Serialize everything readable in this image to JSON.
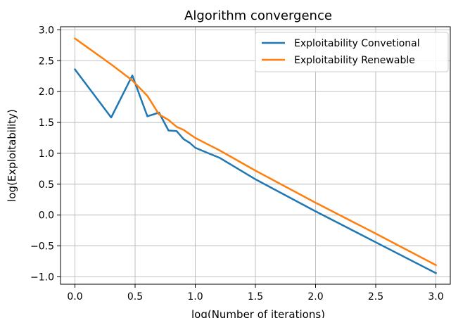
{
  "chart_data": {
    "type": "line",
    "title": "Algorithm convergence",
    "xlabel": "log(Number of iterations)",
    "ylabel": "log(Exploitability)",
    "xlim": [
      -0.12,
      3.12
    ],
    "ylim": [
      -1.12,
      3.05
    ],
    "xticks": [
      0.0,
      0.5,
      1.0,
      1.5,
      2.0,
      2.5,
      3.0
    ],
    "xtick_labels": [
      "0.0",
      "0.5",
      "1.0",
      "1.5",
      "2.0",
      "2.5",
      "3.0"
    ],
    "yticks": [
      -1.0,
      -0.5,
      0.0,
      0.5,
      1.0,
      1.5,
      2.0,
      2.5,
      3.0
    ],
    "ytick_labels": [
      "−1.0",
      "−0.5",
      "0.0",
      "0.5",
      "1.0",
      "1.5",
      "2.0",
      "2.5",
      "3.0"
    ],
    "grid": true,
    "legend_position": "top-right",
    "series": [
      {
        "name": "Exploitability Convetional",
        "color": "#1f77b4",
        "x": [
          0.0,
          0.301,
          0.477,
          0.602,
          0.699,
          0.778,
          0.845,
          0.903,
          0.954,
          1.0,
          1.1,
          1.2,
          1.5,
          2.0,
          2.5,
          3.0
        ],
        "y": [
          2.36,
          1.58,
          2.26,
          1.6,
          1.66,
          1.37,
          1.36,
          1.23,
          1.17,
          1.09,
          1.01,
          0.93,
          0.58,
          0.06,
          -0.44,
          -0.94
        ]
      },
      {
        "name": "Exploitability Renewable",
        "color": "#ff7f0e",
        "x": [
          0.0,
          0.301,
          0.477,
          0.602,
          0.699,
          0.778,
          0.845,
          0.903,
          0.954,
          1.0,
          1.1,
          1.2,
          1.5,
          2.0,
          2.5,
          3.0
        ],
        "y": [
          2.86,
          2.44,
          2.18,
          1.93,
          1.63,
          1.54,
          1.43,
          1.38,
          1.31,
          1.25,
          1.15,
          1.05,
          0.72,
          0.2,
          -0.3,
          -0.81
        ]
      }
    ]
  }
}
